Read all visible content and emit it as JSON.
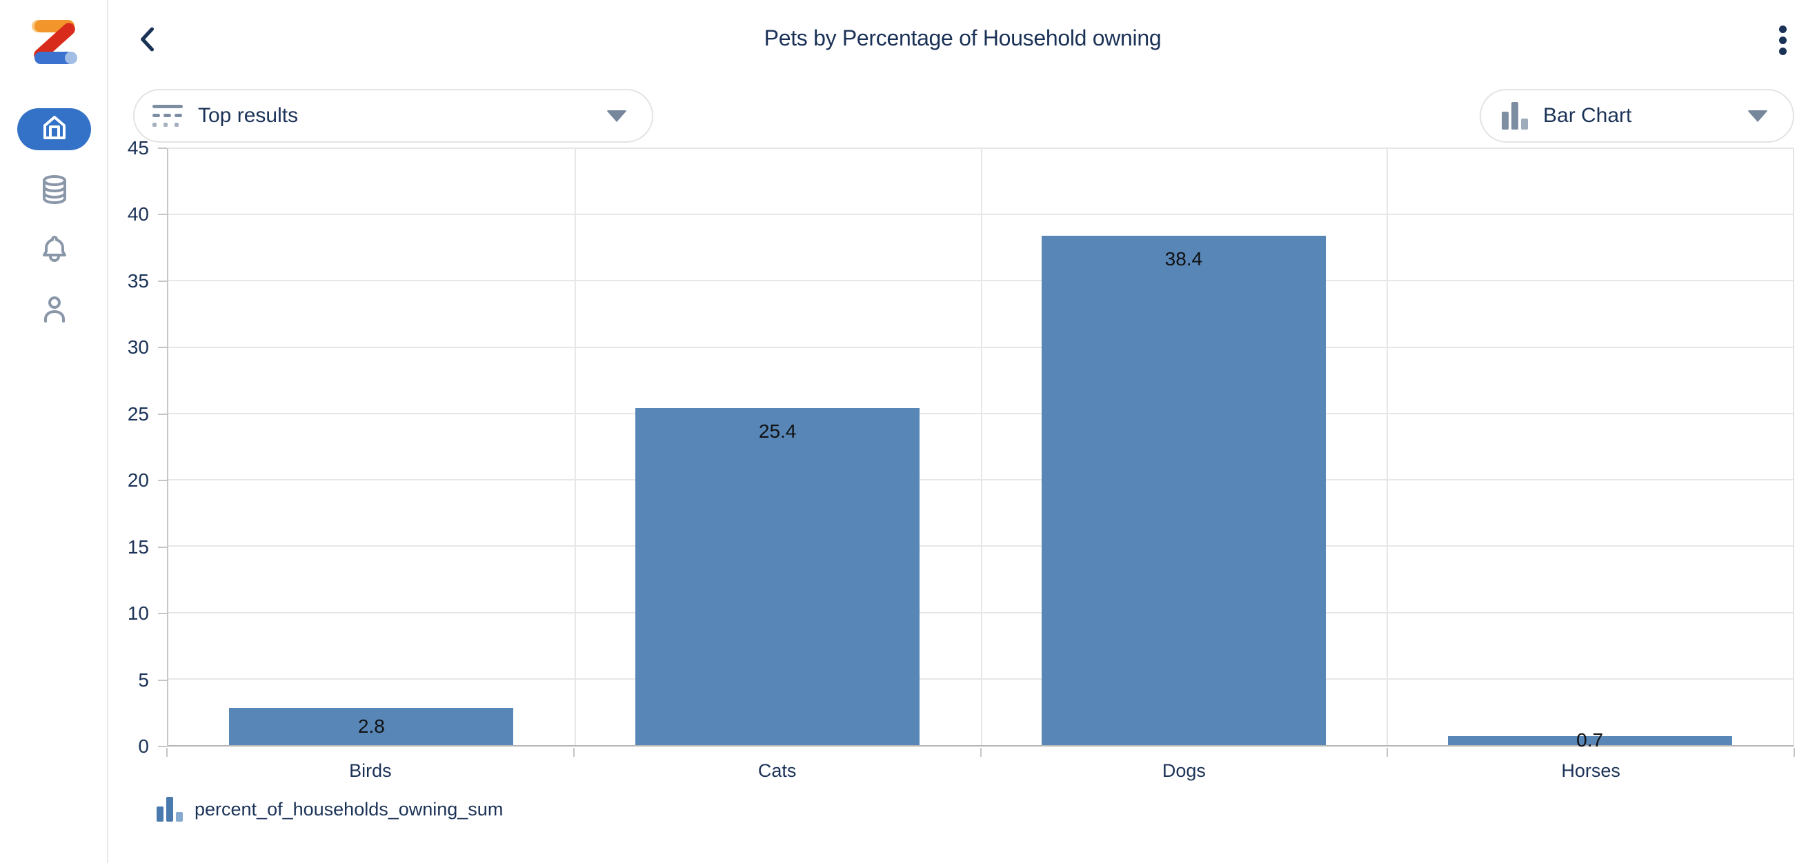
{
  "header": {
    "title": "Pets by Percentage of Household owning",
    "back_icon": "chevron-left",
    "menu_icon": "kebab-vertical"
  },
  "sidebar": {
    "logo_icon": "zing-logo",
    "items": [
      {
        "name": "home",
        "icon": "home-icon",
        "active": true
      },
      {
        "name": "data-sources",
        "icon": "database-icon",
        "active": false
      },
      {
        "name": "notifications",
        "icon": "bell-icon",
        "active": false
      },
      {
        "name": "profile",
        "icon": "person-icon",
        "active": false
      }
    ]
  },
  "controls": {
    "top_results": {
      "label": "Top results",
      "icon": "top-results-filter-icon",
      "arrow_icon": "dropdown-arrow-icon"
    },
    "chart_type": {
      "label": "Bar Chart",
      "icon": "bar-chart-icon",
      "arrow_icon": "dropdown-arrow-icon"
    }
  },
  "chart_data": {
    "type": "bar",
    "title": "Pets by Percentage of Household owning",
    "categories": [
      "Birds",
      "Cats",
      "Dogs",
      "Horses"
    ],
    "values": [
      2.8,
      25.4,
      38.4,
      0.7
    ],
    "series_name": "percent_of_households_owning_sum",
    "xlabel": "",
    "ylabel": "",
    "ylim": [
      0,
      45
    ],
    "yticks": [
      0,
      5,
      10,
      15,
      20,
      25,
      30,
      35,
      40,
      45
    ],
    "grid": true,
    "value_labels": true,
    "legend_position": "bottom-left",
    "bar_color": "#5786B7"
  },
  "legend": {
    "items": [
      {
        "label": "percent_of_households_owning_sum",
        "icon": "bar-chart-icon"
      }
    ]
  },
  "colors": {
    "accent_blue": "#3472C8",
    "navy_text": "#1B3257",
    "bar_fill": "#5786B7",
    "icon_gray": "#8A97A8",
    "pill_border": "#E3E3E3",
    "grid_line": "#E7E7E7",
    "axis_line": "#B5B5B5",
    "value_label_color": "#111111"
  }
}
